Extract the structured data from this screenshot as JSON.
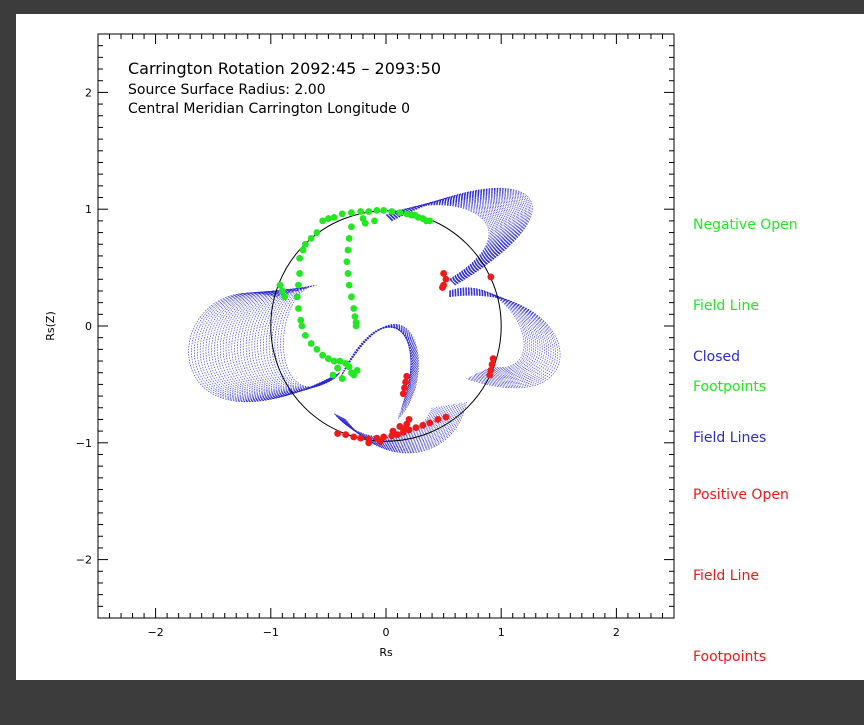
{
  "chart_data": {
    "type": "scatter",
    "title_lines": [
      "Carrington Rotation 2092:45 – 2093:50",
      "Source Surface Radius: 2.00",
      "Central Meridian Carrington Longitude 0"
    ],
    "xlabel": "Rs",
    "ylabel": "Rs(Z)",
    "xlim": [
      -2.5,
      2.5
    ],
    "ylim": [
      -2.5,
      2.5
    ],
    "x_ticks": [
      -2,
      -1,
      0,
      1,
      2
    ],
    "y_ticks": [
      -2,
      -1,
      0,
      1,
      2
    ],
    "x_tick_labels": [
      "−2",
      "−1",
      "0",
      "1",
      "2"
    ],
    "y_tick_labels": [
      "−2",
      "−1",
      "0",
      "1",
      "2"
    ],
    "solar_disk_radius": 1.0,
    "grid": false,
    "legend_placement": "right",
    "legend": [
      {
        "lines": [
          "Negative Open",
          "Field Line",
          "Footpoints"
        ],
        "color": "#22e822"
      },
      {
        "lines": [
          "Closed",
          "Field Lines"
        ],
        "color": "#2a2ad6"
      },
      {
        "lines": [
          "Positive Open",
          "Field Line",
          "Footpoints"
        ],
        "color": "#f01818"
      }
    ],
    "series": [
      {
        "color": "#22e822",
        "points": [
          [
            -0.55,
            0.9
          ],
          [
            -0.5,
            0.92
          ],
          [
            -0.45,
            0.93
          ],
          [
            -0.38,
            0.96
          ],
          [
            -0.3,
            0.97
          ],
          [
            -0.22,
            0.98
          ],
          [
            -0.15,
            0.98
          ],
          [
            -0.08,
            0.99
          ],
          [
            -0.02,
            0.99
          ],
          [
            0.05,
            0.98
          ],
          [
            0.12,
            0.97
          ],
          [
            0.18,
            0.96
          ],
          [
            0.25,
            0.95
          ],
          [
            0.32,
            0.92
          ],
          [
            0.38,
            0.9
          ],
          [
            -0.6,
            0.8
          ],
          [
            -0.65,
            0.75
          ],
          [
            -0.7,
            0.7
          ],
          [
            -0.72,
            0.65
          ],
          [
            -0.75,
            0.58
          ],
          [
            -0.3,
            0.85
          ],
          [
            -0.32,
            0.75
          ],
          [
            -0.33,
            0.65
          ],
          [
            -0.34,
            0.55
          ],
          [
            -0.33,
            0.45
          ],
          [
            -0.32,
            0.35
          ],
          [
            -0.3,
            0.25
          ],
          [
            -0.28,
            0.15
          ],
          [
            -0.27,
            0.08
          ],
          [
            -0.26,
            0.03
          ],
          [
            -0.26,
            0.0
          ],
          [
            -0.75,
            0.45
          ],
          [
            -0.76,
            0.35
          ],
          [
            -0.77,
            0.25
          ],
          [
            -0.76,
            0.15
          ],
          [
            -0.74,
            0.05
          ],
          [
            -0.73,
            0.0
          ],
          [
            -0.7,
            -0.08
          ],
          [
            -0.65,
            -0.15
          ],
          [
            -0.6,
            -0.2
          ],
          [
            -0.55,
            -0.25
          ],
          [
            -0.5,
            -0.28
          ],
          [
            -0.45,
            -0.3
          ],
          [
            -0.4,
            -0.3
          ],
          [
            -0.35,
            -0.32
          ],
          [
            -0.32,
            -0.35
          ],
          [
            -0.3,
            -0.4
          ],
          [
            -0.28,
            -0.42
          ],
          [
            -0.25,
            -0.38
          ],
          [
            -0.42,
            -0.36
          ],
          [
            -0.46,
            -0.42
          ],
          [
            -0.38,
            -0.45
          ],
          [
            -0.92,
            0.35
          ],
          [
            -0.9,
            0.3
          ],
          [
            -0.88,
            0.25
          ],
          [
            -0.2,
            0.92
          ],
          [
            -0.18,
            0.88
          ],
          [
            -0.1,
            0.9
          ],
          [
            0.28,
            0.93
          ],
          [
            0.22,
            0.95
          ],
          [
            0.35,
            0.9
          ]
        ]
      },
      {
        "color": "#f01818",
        "points": [
          [
            0.5,
            0.45
          ],
          [
            0.52,
            0.4
          ],
          [
            0.5,
            0.35
          ],
          [
            0.49,
            0.33
          ],
          [
            0.91,
            0.42
          ],
          [
            0.93,
            -0.28
          ],
          [
            0.92,
            -0.33
          ],
          [
            0.91,
            -0.38
          ],
          [
            0.9,
            -0.42
          ],
          [
            0.18,
            -0.43
          ],
          [
            0.17,
            -0.48
          ],
          [
            0.16,
            -0.53
          ],
          [
            0.15,
            -0.58
          ],
          [
            -0.42,
            -0.92
          ],
          [
            -0.35,
            -0.93
          ],
          [
            -0.28,
            -0.95
          ],
          [
            -0.22,
            -0.96
          ],
          [
            -0.15,
            -0.97
          ],
          [
            -0.08,
            -0.96
          ],
          [
            -0.02,
            -0.95
          ],
          [
            0.05,
            -0.94
          ],
          [
            0.1,
            -0.93
          ],
          [
            0.15,
            -0.91
          ],
          [
            0.2,
            -0.89
          ],
          [
            0.26,
            -0.87
          ],
          [
            0.32,
            -0.85
          ],
          [
            0.38,
            -0.83
          ],
          [
            0.45,
            -0.8
          ],
          [
            0.52,
            -0.78
          ],
          [
            0.15,
            -0.88
          ],
          [
            0.18,
            -0.84
          ],
          [
            0.2,
            -0.8
          ],
          [
            0.12,
            -0.86
          ],
          [
            0.06,
            -0.9
          ],
          [
            -0.05,
            -0.99
          ],
          [
            -0.15,
            -1.0
          ]
        ]
      }
    ]
  }
}
